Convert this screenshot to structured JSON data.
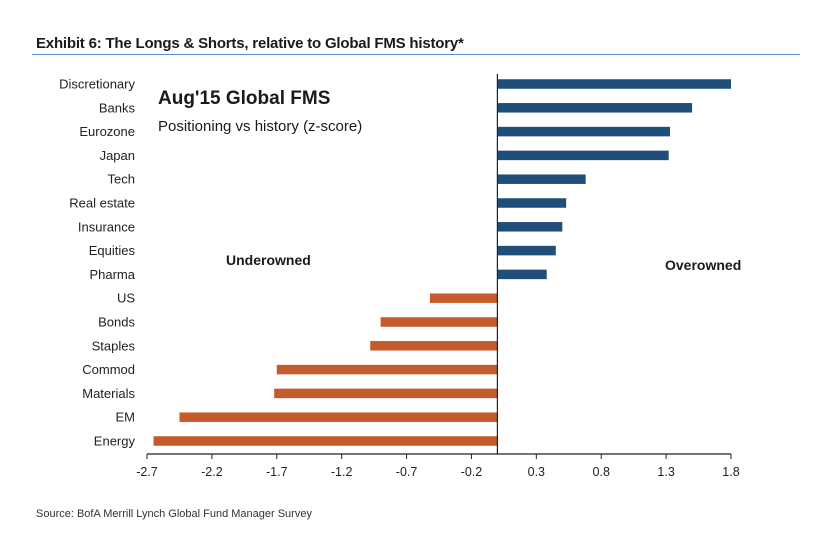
{
  "exhibit_title": "Exhibit 6: The Longs & Shorts, relative to Global FMS history*",
  "source": "Source: BofA Merrill Lynch Global Fund Manager Survey",
  "colors": {
    "positive": "#1f4e79",
    "negative": "#c55a2b",
    "rule": "#5b8fc7"
  },
  "chart_data": {
    "type": "bar",
    "orientation": "horizontal",
    "title": "Aug'15 Global FMS",
    "subtitle": "Positioning vs history (z-score)",
    "xlabel": "",
    "ylabel": "",
    "xlim": [
      -2.7,
      1.8
    ],
    "xticks": [
      -2.7,
      -2.2,
      -1.7,
      -1.2,
      -0.7,
      -0.2,
      0.3,
      0.8,
      1.3,
      1.8
    ],
    "xtick_labels": [
      "-2.7",
      "-2.2",
      "-1.7",
      "-1.2",
      "-0.7",
      "-0.2",
      "0.3",
      "0.8",
      "1.3",
      "1.8"
    ],
    "grid": false,
    "annotations": {
      "left": "Underowned",
      "right": "Overowned"
    },
    "categories": [
      "Discretionary",
      "Banks",
      "Eurozone",
      "Japan",
      "Tech",
      "Real estate",
      "Insurance",
      "Equities",
      "Pharma",
      "US",
      "Bonds",
      "Staples",
      "Commod",
      "Materials",
      "EM",
      "Energy"
    ],
    "values": [
      1.8,
      1.5,
      1.33,
      1.32,
      0.68,
      0.53,
      0.5,
      0.45,
      0.38,
      -0.52,
      -0.9,
      -0.98,
      -1.7,
      -1.72,
      -2.45,
      -2.65
    ]
  }
}
